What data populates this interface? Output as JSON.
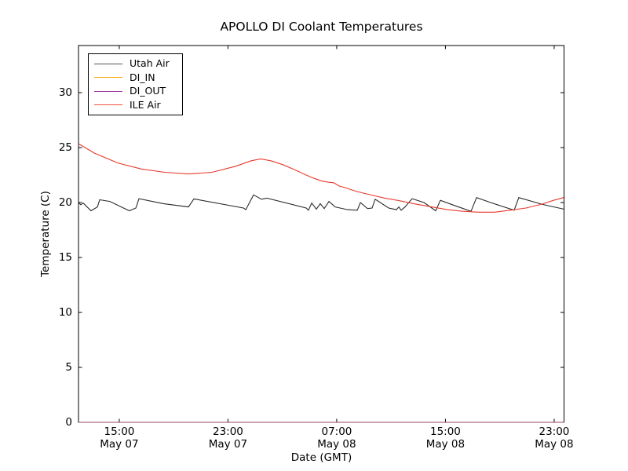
{
  "figure": {
    "title": "APOLLO DI Coolant Temperatures",
    "xlabel": "Date (GMT)",
    "ylabel": "Temperature (C)"
  },
  "legend": {
    "position": "upper left",
    "items": [
      {
        "label": "Utah Air",
        "color": "#555555"
      },
      {
        "label": "DI_IN",
        "color": "#ffa500"
      },
      {
        "label": "DI_OUT",
        "color": "#993399"
      },
      {
        "label": "ILE Air",
        "color": "#f05540"
      }
    ]
  },
  "chart_data": {
    "type": "line",
    "title": "APOLLO DI Coolant Temperatures",
    "xlabel": "Date (GMT)",
    "ylabel": "Temperature (C)",
    "grid": false,
    "legend_position": "upper left",
    "y_axis": {
      "range": [
        0,
        34.3
      ],
      "ticks": [
        0,
        5,
        10,
        15,
        20,
        25,
        30
      ]
    },
    "x_axis": {
      "unit": "hours after May 07 12:00 GMT",
      "range": [
        0,
        35.73
      ],
      "ticks": [
        {
          "hours": 3,
          "line1": "15:00",
          "line2": "May 07"
        },
        {
          "hours": 11,
          "line1": "23:00",
          "line2": "May 07"
        },
        {
          "hours": 19,
          "line1": "07:00",
          "line2": "May 08"
        },
        {
          "hours": 27,
          "line1": "15:00",
          "line2": "May 08"
        },
        {
          "hours": 35,
          "line1": "23:00",
          "line2": "May 08"
        }
      ]
    },
    "series": [
      {
        "name": "Utah Air",
        "color": "#2b2b2b",
        "opacity": 1,
        "points": [
          [
            0,
            20.0
          ],
          [
            0.17,
            19.8
          ],
          [
            0.35,
            19.95
          ],
          [
            0.92,
            19.25
          ],
          [
            1.39,
            19.6
          ],
          [
            1.56,
            20.25
          ],
          [
            2.31,
            20.1
          ],
          [
            3.74,
            19.25
          ],
          [
            4.22,
            19.5
          ],
          [
            4.45,
            20.35
          ],
          [
            6.24,
            19.9
          ],
          [
            8.09,
            19.6
          ],
          [
            8.49,
            20.33
          ],
          [
            12.14,
            19.5
          ],
          [
            12.31,
            19.35
          ],
          [
            12.88,
            20.7
          ],
          [
            13.46,
            20.3
          ],
          [
            13.86,
            20.4
          ],
          [
            16.75,
            19.5
          ],
          [
            16.92,
            19.3
          ],
          [
            17.16,
            19.95
          ],
          [
            17.5,
            19.4
          ],
          [
            17.79,
            19.9
          ],
          [
            18.08,
            19.45
          ],
          [
            18.43,
            20.1
          ],
          [
            18.89,
            19.6
          ],
          [
            19.81,
            19.35
          ],
          [
            20.51,
            19.3
          ],
          [
            20.74,
            20.0
          ],
          [
            21.26,
            19.45
          ],
          [
            21.6,
            19.5
          ],
          [
            21.83,
            20.3
          ],
          [
            22.82,
            19.5
          ],
          [
            23.39,
            19.35
          ],
          [
            23.57,
            19.6
          ],
          [
            23.74,
            19.3
          ],
          [
            24.03,
            19.6
          ],
          [
            24.55,
            20.35
          ],
          [
            25.42,
            20.0
          ],
          [
            26.28,
            19.25
          ],
          [
            26.63,
            20.2
          ],
          [
            27.73,
            19.7
          ],
          [
            28.88,
            19.2
          ],
          [
            29.29,
            20.45
          ],
          [
            30.32,
            20.0
          ],
          [
            32.06,
            19.3
          ],
          [
            32.4,
            20.45
          ],
          [
            34.08,
            19.85
          ],
          [
            35.7,
            19.4
          ]
        ]
      },
      {
        "name": "DI_IN",
        "color": "#ffa500",
        "opacity": 0.6,
        "points": [
          [
            0,
            0
          ],
          [
            35.73,
            0
          ]
        ]
      },
      {
        "name": "DI_OUT",
        "color": "#993399",
        "opacity": 0.6,
        "points": [
          [
            0,
            0
          ],
          [
            35.73,
            0
          ]
        ]
      },
      {
        "name": "ILE Air",
        "color": "#e8392d",
        "opacity": 1,
        "points": [
          [
            0,
            25.35
          ],
          [
            1.16,
            24.5
          ],
          [
            2.89,
            23.6
          ],
          [
            4.62,
            23.05
          ],
          [
            6.35,
            22.75
          ],
          [
            8.09,
            22.6
          ],
          [
            9.82,
            22.75
          ],
          [
            11.55,
            23.3
          ],
          [
            12.71,
            23.8
          ],
          [
            13.4,
            23.97
          ],
          [
            14.15,
            23.8
          ],
          [
            15.02,
            23.45
          ],
          [
            15.88,
            23.0
          ],
          [
            16.75,
            22.5
          ],
          [
            17.33,
            22.2
          ],
          [
            17.91,
            21.95
          ],
          [
            18.37,
            21.85
          ],
          [
            18.78,
            21.8
          ],
          [
            19.18,
            21.5
          ],
          [
            19.64,
            21.35
          ],
          [
            20.22,
            21.1
          ],
          [
            20.8,
            20.9
          ],
          [
            21.66,
            20.65
          ],
          [
            22.53,
            20.4
          ],
          [
            23.68,
            20.15
          ],
          [
            24.84,
            19.85
          ],
          [
            25.99,
            19.6
          ],
          [
            27.14,
            19.35
          ],
          [
            28.3,
            19.2
          ],
          [
            29.45,
            19.12
          ],
          [
            30.61,
            19.12
          ],
          [
            31.76,
            19.3
          ],
          [
            32.92,
            19.5
          ],
          [
            34.08,
            19.85
          ],
          [
            34.95,
            20.2
          ],
          [
            35.7,
            20.45
          ]
        ]
      }
    ]
  }
}
